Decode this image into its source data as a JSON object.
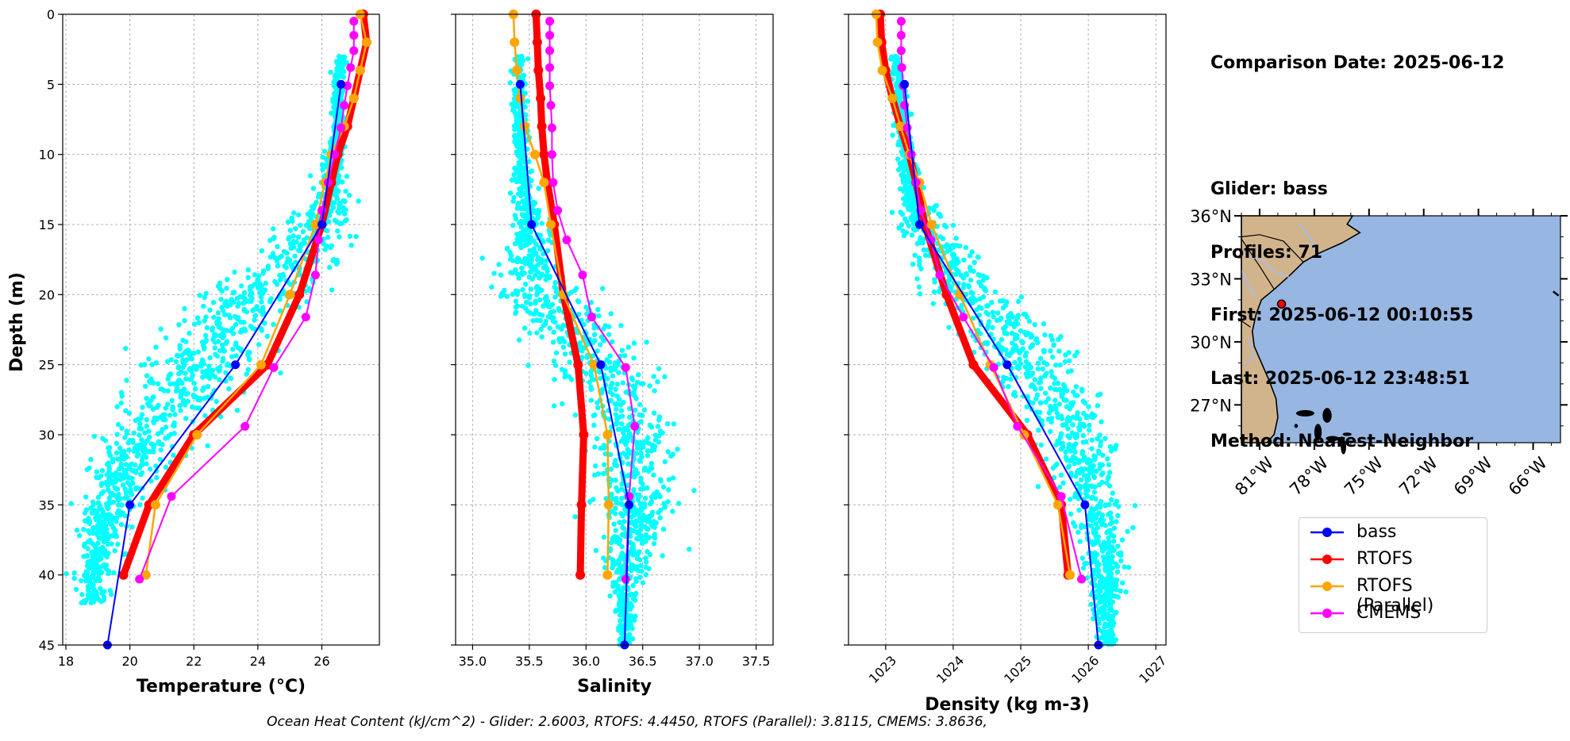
{
  "info": {
    "comparison_date": "Comparison Date: 2025-06-12",
    "glider": "Glider: bass",
    "profiles": "Profiles: 71",
    "first": "First: 2025-06-12 00:10:55",
    "last": "Last: 2025-06-12 23:48:51",
    "method": "Method: Nearest-Neighbor"
  },
  "footer": "Ocean Heat Content (kJ/cm^2) - Glider: 2.6003,  RTOFS: 4.4450,  RTOFS (Parallel): 3.8115,  CMEMS: 3.8636,",
  "colors": {
    "bass": "#0000ff",
    "rtofs": "#ff0000",
    "rtofs_parallel": "#ffa500",
    "cmems": "#ff00ff",
    "scatter": "#00ffff",
    "ocean": "#97b6e1",
    "land": "#d2b48c"
  },
  "legend": [
    {
      "key": "bass",
      "label": "bass",
      "color": "#0000ff"
    },
    {
      "key": "rtofs",
      "label": "RTOFS",
      "color": "#ff0000"
    },
    {
      "key": "rtofs_parallel",
      "label": "RTOFS (Parallel)",
      "color": "#ffa500"
    },
    {
      "key": "cmems",
      "label": "CMEMS",
      "color": "#ff00ff"
    }
  ],
  "chart_data": [
    {
      "type": "line",
      "xlabel": "Temperature (°C)",
      "ylabel": "Depth (m)",
      "xlim": [
        17.9,
        27.8
      ],
      "ylim": [
        45,
        0
      ],
      "xticks": [
        18,
        20,
        22,
        24,
        26
      ],
      "yticks": [
        0,
        5,
        10,
        15,
        20,
        25,
        30,
        35,
        40,
        45
      ],
      "grid": true,
      "scatter_obs": {
        "name": "glider observations",
        "profile": [
          [
            3,
            26.6
          ],
          [
            5,
            26.5
          ],
          [
            8,
            26.5
          ],
          [
            10,
            26.4
          ],
          [
            12,
            26.3
          ],
          [
            15,
            26.0
          ],
          [
            18,
            25.0
          ],
          [
            20,
            24.0
          ],
          [
            22,
            23.0
          ],
          [
            25,
            22.3
          ],
          [
            28,
            21.4
          ],
          [
            30,
            20.6
          ],
          [
            33,
            19.8
          ],
          [
            35,
            19.4
          ],
          [
            38,
            19.0
          ],
          [
            40,
            18.9
          ],
          [
            42,
            18.8
          ]
        ],
        "spread": [
          0.15,
          0.15,
          0.2,
          0.25,
          0.4,
          0.9,
          1.4,
          1.6,
          1.6,
          1.6,
          1.5,
          1.3,
          1.0,
          0.8,
          0.6,
          0.5,
          0.4
        ]
      },
      "series": [
        {
          "name": "bass",
          "depth": [
            5,
            15,
            25,
            35,
            45
          ],
          "value": [
            26.6,
            26.0,
            23.3,
            20.0,
            19.3
          ]
        },
        {
          "name": "RTOFS",
          "depth": [
            0,
            2,
            4,
            6,
            8,
            10,
            12,
            15,
            20,
            25,
            30,
            35,
            40
          ],
          "value": [
            27.3,
            27.4,
            27.2,
            27.0,
            26.8,
            26.5,
            26.3,
            26.0,
            25.3,
            24.3,
            22.0,
            20.6,
            19.8
          ]
        },
        {
          "name": "RTOFS (Parallel)",
          "depth": [
            0,
            2,
            4,
            6,
            8,
            10,
            12,
            15,
            20,
            25,
            30,
            35,
            40
          ],
          "value": [
            27.2,
            27.4,
            27.2,
            27.0,
            26.7,
            26.3,
            26.1,
            25.8,
            25.0,
            24.1,
            22.1,
            20.8,
            20.5
          ]
        },
        {
          "name": "CMEMS",
          "depth": [
            0.5,
            1.5,
            2.6,
            3.8,
            5.1,
            6.5,
            8.1,
            10.0,
            12.0,
            14.0,
            16.1,
            18.6,
            21.6,
            25.2,
            29.4,
            34.4,
            40.3
          ],
          "value": [
            27.0,
            27.0,
            27.0,
            26.9,
            26.8,
            26.7,
            26.6,
            26.4,
            26.2,
            26.0,
            25.9,
            25.8,
            25.5,
            24.5,
            23.6,
            21.3,
            20.3
          ]
        }
      ]
    },
    {
      "type": "line",
      "xlabel": "Salinity",
      "xlim": [
        34.85,
        37.65
      ],
      "ylim": [
        45,
        0
      ],
      "xticks": [
        35.0,
        35.5,
        36.0,
        36.5,
        37.0,
        37.5
      ],
      "xtick_labels": [
        "35.0",
        "35.5",
        "36.0",
        "36.5",
        "37.0",
        "37.5"
      ],
      "grid": true,
      "scatter_obs": {
        "name": "glider observations",
        "profile": [
          [
            3,
            35.4
          ],
          [
            5,
            35.42
          ],
          [
            8,
            35.42
          ],
          [
            10,
            35.43
          ],
          [
            12,
            35.45
          ],
          [
            15,
            35.5
          ],
          [
            18,
            35.5
          ],
          [
            20,
            35.6
          ],
          [
            22,
            35.8
          ],
          [
            25,
            36.15
          ],
          [
            28,
            36.3
          ],
          [
            30,
            36.4
          ],
          [
            33,
            36.45
          ],
          [
            35,
            36.45
          ],
          [
            38,
            36.4
          ],
          [
            40,
            36.35
          ],
          [
            42,
            36.35
          ],
          [
            45,
            36.35
          ]
        ],
        "spread": [
          0.05,
          0.05,
          0.06,
          0.06,
          0.08,
          0.15,
          0.25,
          0.35,
          0.4,
          0.4,
          0.35,
          0.3,
          0.3,
          0.3,
          0.25,
          0.15,
          0.1,
          0.05
        ]
      },
      "series": [
        {
          "name": "bass",
          "depth": [
            5,
            15,
            25,
            35,
            45
          ],
          "value": [
            35.42,
            35.52,
            36.13,
            36.38,
            36.34
          ]
        },
        {
          "name": "RTOFS",
          "depth": [
            0,
            2,
            4,
            6,
            8,
            10,
            12,
            15,
            20,
            25,
            30,
            35,
            40
          ],
          "value": [
            35.56,
            35.57,
            35.58,
            35.6,
            35.61,
            35.63,
            35.66,
            35.72,
            35.8,
            35.93,
            35.98,
            35.96,
            35.95
          ]
        },
        {
          "name": "RTOFS (Parallel)",
          "depth": [
            0,
            2,
            4,
            6,
            8,
            10,
            12,
            15,
            20,
            25,
            30,
            35,
            40
          ],
          "value": [
            35.36,
            35.37,
            35.39,
            35.42,
            35.46,
            35.55,
            35.63,
            35.69,
            35.8,
            36.07,
            36.19,
            36.2,
            36.19
          ]
        },
        {
          "name": "CMEMS",
          "depth": [
            0.5,
            1.5,
            2.6,
            3.8,
            5.1,
            6.5,
            8.1,
            10.0,
            12.0,
            14.0,
            16.1,
            18.6,
            21.6,
            25.2,
            29.4,
            34.4,
            40.3
          ],
          "value": [
            35.68,
            35.68,
            35.68,
            35.68,
            35.68,
            35.69,
            35.7,
            35.7,
            35.71,
            35.75,
            35.83,
            35.97,
            36.05,
            36.35,
            36.43,
            36.38,
            36.35
          ]
        }
      ]
    },
    {
      "type": "line",
      "xlabel": "Density (kg m-3)",
      "xlim": [
        1022.45,
        1027.15
      ],
      "ylim": [
        45,
        0
      ],
      "xticks": [
        1023,
        1024,
        1025,
        1026,
        1027
      ],
      "grid": true,
      "scatter_obs": {
        "name": "glider observations",
        "profile": [
          [
            3,
            1023.15
          ],
          [
            5,
            1023.2
          ],
          [
            8,
            1023.25
          ],
          [
            10,
            1023.3
          ],
          [
            12,
            1023.35
          ],
          [
            15,
            1023.5
          ],
          [
            18,
            1024.0
          ],
          [
            20,
            1024.3
          ],
          [
            22,
            1024.7
          ],
          [
            25,
            1025.1
          ],
          [
            28,
            1025.5
          ],
          [
            30,
            1025.75
          ],
          [
            33,
            1026.0
          ],
          [
            35,
            1026.1
          ],
          [
            38,
            1026.2
          ],
          [
            40,
            1026.25
          ],
          [
            42,
            1026.25
          ],
          [
            45,
            1026.3
          ]
        ],
        "spread": [
          0.08,
          0.08,
          0.1,
          0.12,
          0.15,
          0.3,
          0.5,
          0.6,
          0.65,
          0.65,
          0.6,
          0.55,
          0.45,
          0.4,
          0.3,
          0.25,
          0.2,
          0.1
        ]
      },
      "series": [
        {
          "name": "bass",
          "depth": [
            5,
            15,
            25,
            35,
            45
          ],
          "value": [
            1023.28,
            1023.5,
            1024.8,
            1025.95,
            1026.15
          ]
        },
        {
          "name": "RTOFS",
          "depth": [
            0,
            2,
            4,
            6,
            8,
            10,
            12,
            15,
            20,
            25,
            30,
            35,
            40
          ],
          "value": [
            1022.92,
            1022.94,
            1023.0,
            1023.1,
            1023.22,
            1023.35,
            1023.45,
            1023.58,
            1023.9,
            1024.3,
            1025.1,
            1025.6,
            1025.7
          ]
        },
        {
          "name": "RTOFS (Parallel)",
          "depth": [
            0,
            2,
            4,
            6,
            8,
            10,
            12,
            15,
            20,
            25,
            30,
            35,
            40
          ],
          "value": [
            1022.86,
            1022.88,
            1022.95,
            1023.1,
            1023.22,
            1023.35,
            1023.5,
            1023.68,
            1024.1,
            1024.55,
            1025.05,
            1025.55,
            1025.73
          ]
        },
        {
          "name": "CMEMS",
          "depth": [
            0.5,
            1.5,
            2.6,
            3.8,
            5.1,
            6.5,
            8.1,
            10.0,
            12.0,
            14.0,
            16.1,
            18.6,
            21.6,
            25.2,
            29.4,
            34.4,
            40.3
          ],
          "value": [
            1023.23,
            1023.23,
            1023.23,
            1023.24,
            1023.26,
            1023.28,
            1023.32,
            1023.38,
            1023.45,
            1023.52,
            1023.67,
            1023.8,
            1024.15,
            1024.6,
            1024.95,
            1025.6,
            1025.9
          ]
        }
      ]
    }
  ],
  "map": {
    "type": "map",
    "lon_range": [
      -82.0,
      -64.5
    ],
    "lat_range": [
      25.2,
      36.0
    ],
    "lat_ticks": [
      36,
      33,
      30,
      27
    ],
    "lat_tick_labels": [
      "36°N",
      "33°N",
      "30°N",
      "27°N"
    ],
    "lon_ticks": [
      -81,
      -78,
      -75,
      -72,
      -69,
      -66
    ],
    "lon_tick_labels": [
      "81°W",
      "78°W",
      "75°W",
      "72°W",
      "69°W",
      "66°W"
    ],
    "glider_position": {
      "lon": -79.8,
      "lat": 31.8
    }
  }
}
